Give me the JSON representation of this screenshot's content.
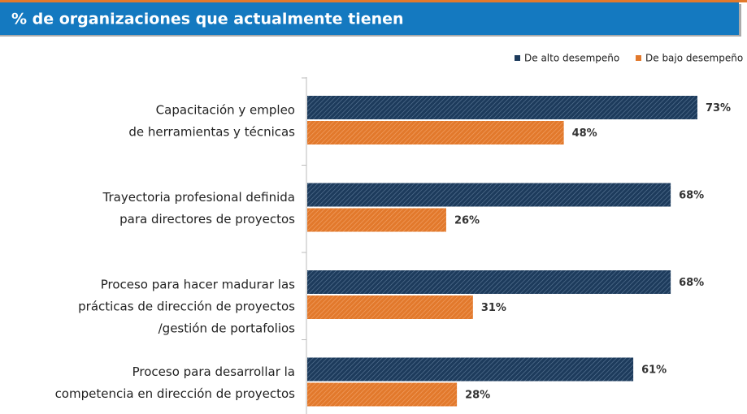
{
  "chart_data": {
    "type": "bar",
    "orientation": "horizontal",
    "title": "% de organizaciones que actualmente tienen",
    "categories": [
      [
        "Capacitación y empleo",
        "de herramientas y técnicas"
      ],
      [
        "Trayectoria profesional definida",
        "para directores de proyectos"
      ],
      [
        "Proceso para hacer madurar las",
        "prácticas de dirección de proyectos",
        "/gestión de portafolios"
      ],
      [
        "Proceso para desarrollar la",
        "competencia en dirección de proyectos"
      ]
    ],
    "series": [
      {
        "name": "De alto desempeño",
        "color": "#1d3b5c",
        "values": [
          73,
          68,
          68,
          61
        ],
        "value_labels": [
          "73%",
          "68%",
          "68%",
          "61%"
        ]
      },
      {
        "name": "De bajo desempeño",
        "color": "#e2792c",
        "values": [
          48,
          26,
          31,
          28
        ],
        "value_labels": [
          "48%",
          "26%",
          "31%",
          "28%"
        ]
      }
    ],
    "legend": "top-right"
  }
}
